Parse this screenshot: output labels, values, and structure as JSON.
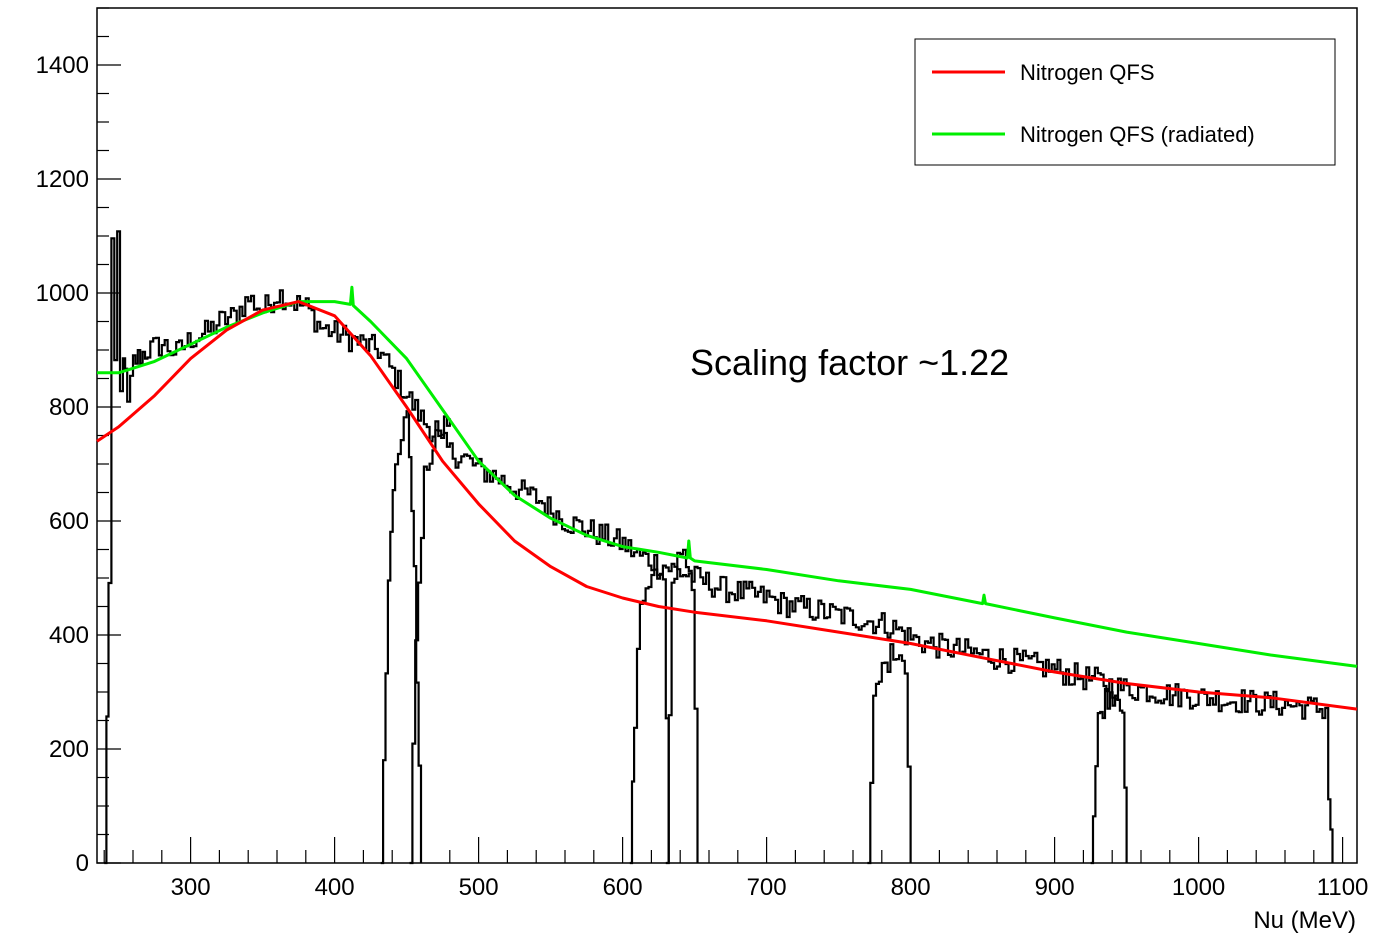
{
  "chart_data": {
    "type": "line",
    "xlabel": "Nu (MeV)",
    "ylabel": "",
    "title": "",
    "xlim": [
      235,
      1110
    ],
    "ylim": [
      0,
      1500
    ],
    "x_ticks": [
      300,
      400,
      500,
      600,
      700,
      800,
      900,
      1000,
      1100
    ],
    "y_ticks": [
      0,
      200,
      400,
      600,
      800,
      1000,
      1200,
      1400
    ],
    "annotation": "Scaling factor ~1.22",
    "legend_position": "top-right",
    "legend": [
      {
        "label": "Nitrogen QFS",
        "color": "#ff0000"
      },
      {
        "label": "Nitrogen QFS (radiated)",
        "color": "#00ee00"
      }
    ],
    "series": [
      {
        "name": "Nitrogen QFS",
        "color": "#ff0000",
        "x": [
          235,
          250,
          275,
          300,
          325,
          350,
          375,
          400,
          425,
          450,
          475,
          500,
          525,
          550,
          575,
          600,
          625,
          650,
          700,
          750,
          800,
          850,
          900,
          950,
          1000,
          1050,
          1110
        ],
        "y": [
          740,
          765,
          820,
          885,
          935,
          970,
          985,
          960,
          890,
          800,
          705,
          630,
          565,
          520,
          485,
          465,
          450,
          440,
          425,
          405,
          385,
          360,
          335,
          315,
          300,
          290,
          270
        ]
      },
      {
        "name": "Nitrogen QFS (radiated)",
        "color": "#00ee00",
        "x": [
          235,
          250,
          275,
          300,
          325,
          350,
          375,
          400,
          411,
          412,
          413,
          425,
          450,
          475,
          500,
          525,
          550,
          575,
          600,
          625,
          645,
          646,
          647,
          650,
          700,
          750,
          800,
          850,
          851,
          852,
          900,
          950,
          1000,
          1050,
          1110
        ],
        "y": [
          860,
          860,
          880,
          910,
          940,
          965,
          985,
          985,
          980,
          1010,
          978,
          950,
          885,
          795,
          705,
          645,
          605,
          575,
          555,
          545,
          535,
          565,
          535,
          530,
          515,
          495,
          480,
          455,
          470,
          455,
          430,
          405,
          385,
          365,
          345
        ]
      }
    ],
    "data_series": [
      {
        "x": [
          240,
          243,
          245,
          247,
          249,
          251,
          253,
          256,
          260,
          265,
          270,
          280,
          290,
          300,
          310,
          320,
          330,
          340,
          350,
          360,
          370,
          380,
          390,
          400,
          410,
          420,
          430,
          440,
          450,
          460,
          470,
          480,
          490,
          500,
          510,
          520,
          530,
          540,
          550,
          560,
          570,
          580,
          590,
          600,
          610,
          620,
          630,
          640,
          650,
          660,
          670,
          680,
          690,
          700,
          710,
          720,
          730,
          740,
          750,
          760,
          770,
          780,
          790,
          800,
          810,
          820,
          830,
          840,
          850,
          860,
          870,
          880,
          890,
          900,
          910,
          920,
          930,
          940,
          950,
          960,
          970,
          980,
          990,
          1000,
          1010,
          1020,
          1030,
          1040,
          1050,
          1060,
          1070,
          1080,
          1088,
          1090,
          1093
        ],
        "y": [
          0,
          500,
          1090,
          860,
          1100,
          820,
          900,
          800,
          880,
          890,
          900,
          910,
          895,
          920,
          930,
          950,
          960,
          990,
          970,
          1000,
          985,
          975,
          940,
          930,
          920,
          910,
          900,
          860,
          820,
          780,
          750,
          720,
          710,
          690,
          680,
          665,
          650,
          640,
          620,
          600,
          590,
          580,
          570,
          560,
          540,
          530,
          520,
          510,
          500,
          490,
          480,
          475,
          470,
          465,
          455,
          450,
          445,
          440,
          435,
          430,
          425,
          420,
          410,
          395,
          385,
          380,
          375,
          370,
          365,
          360,
          355,
          350,
          345,
          340,
          330,
          325,
          320,
          310,
          305,
          305,
          300,
          295,
          295,
          290,
          290,
          285,
          285,
          280,
          280,
          278,
          275,
          272,
          270,
          120,
          0
        ]
      },
      {
        "x": [
          432,
          437,
          442,
          450,
          455,
          460
        ],
        "y": [
          0,
          500,
          700,
          790,
          500,
          0
        ]
      },
      {
        "x": [
          452,
          456,
          462,
          470,
          480
        ],
        "y": [
          0,
          400,
          680,
          760,
          780
        ]
      },
      {
        "x": [
          605,
          608,
          612,
          620,
          628,
          632
        ],
        "y": [
          0,
          250,
          460,
          510,
          490,
          0
        ]
      },
      {
        "x": [
          630,
          634,
          640,
          648,
          652
        ],
        "y": [
          0,
          480,
          560,
          500,
          0
        ]
      },
      {
        "x": [
          770,
          774,
          780,
          790,
          796,
          800
        ],
        "y": [
          0,
          280,
          340,
          380,
          350,
          0
        ]
      },
      {
        "x": [
          925,
          930,
          935,
          942,
          947,
          950
        ],
        "y": [
          0,
          250,
          290,
          300,
          280,
          0
        ]
      }
    ]
  }
}
